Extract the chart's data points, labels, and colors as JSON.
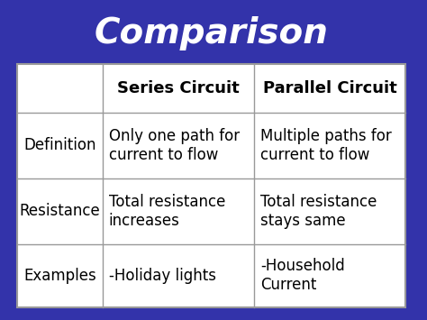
{
  "title": "Comparison",
  "background_color": "#3333AA",
  "title_color": "#FFFFFF",
  "title_fontsize": 28,
  "table_bg": "#FFFFFF",
  "col_labels": [
    "",
    "Series Circuit",
    "Parallel Circuit"
  ],
  "row_labels": [
    "Definition",
    "Resistance",
    "Examples"
  ],
  "series_data": [
    "Only one path for\ncurrent to flow",
    "Total resistance\nincreases",
    "-Holiday lights"
  ],
  "parallel_data": [
    "Multiple paths for\ncurrent to flow",
    "Total resistance\nstays same",
    "-Household\nCurrent"
  ],
  "col_label_fontsize": 13,
  "row_label_fontsize": 12,
  "cell_fontsize": 12,
  "line_color": "#999999",
  "text_color": "#000000",
  "header_text_color": "#000000"
}
